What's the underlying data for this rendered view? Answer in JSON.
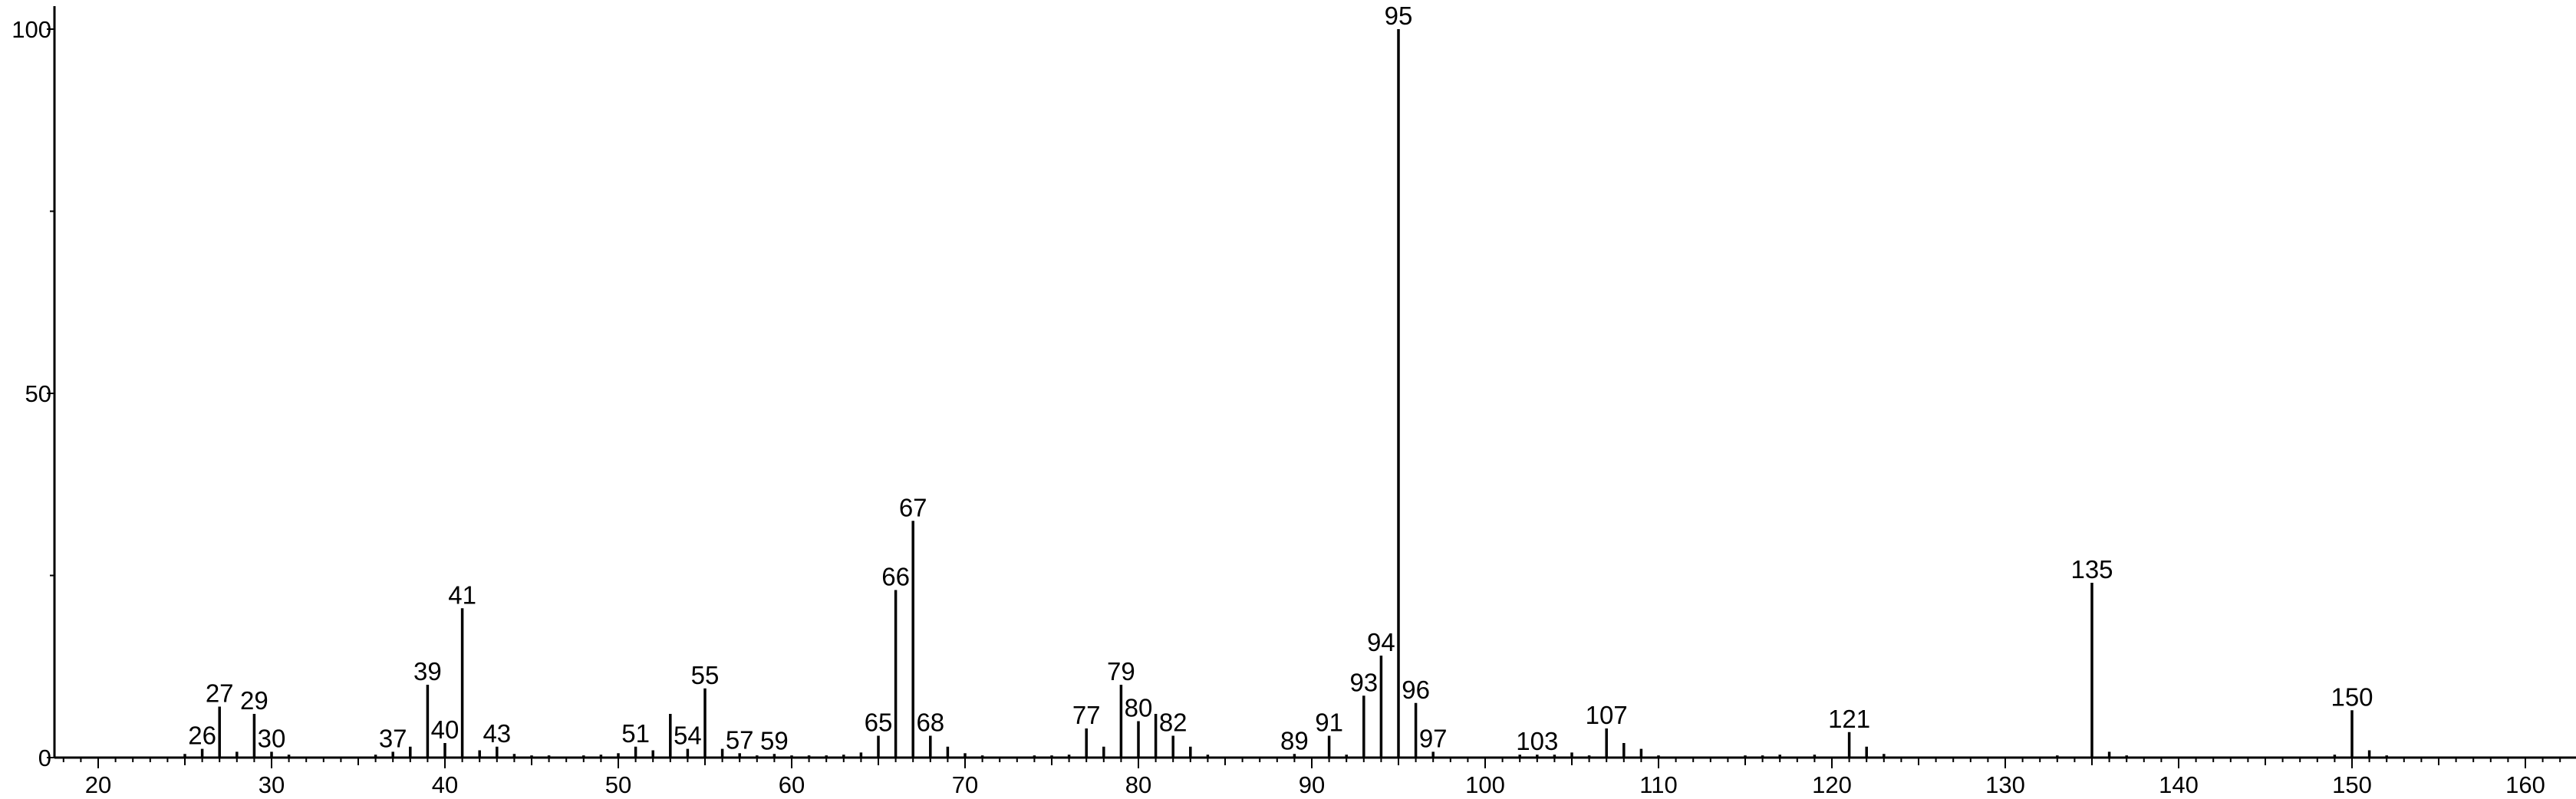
{
  "chart_data": {
    "type": "bar",
    "title": "",
    "xlabel": "",
    "ylabel": "",
    "xlim": [
      18,
      162
    ],
    "ylim": [
      0,
      100
    ],
    "x_ticks": [
      20,
      30,
      40,
      50,
      60,
      70,
      80,
      90,
      100,
      110,
      120,
      130,
      140,
      150,
      160
    ],
    "x_tick_labels": [
      "20",
      "30",
      "40",
      "50",
      "60",
      "70",
      "80",
      "90",
      "100",
      "110",
      "120",
      "130",
      "140",
      "150",
      "160"
    ],
    "y_ticks": [
      0,
      50,
      100
    ],
    "y_tick_labels": [
      "0",
      "50",
      "100"
    ],
    "grid": false,
    "legend": "none",
    "bar_color": "#000000",
    "peaks": [
      {
        "mz": 25,
        "intensity": 0.5
      },
      {
        "mz": 26,
        "intensity": 1.2,
        "label": "26"
      },
      {
        "mz": 27,
        "intensity": 7,
        "label": "27"
      },
      {
        "mz": 28,
        "intensity": 0.8
      },
      {
        "mz": 29,
        "intensity": 6,
        "label": "29"
      },
      {
        "mz": 30,
        "intensity": 0.8,
        "label": "30"
      },
      {
        "mz": 31,
        "intensity": 0.4
      },
      {
        "mz": 36,
        "intensity": 0.4
      },
      {
        "mz": 37,
        "intensity": 0.8,
        "label": "37"
      },
      {
        "mz": 38,
        "intensity": 1.5
      },
      {
        "mz": 39,
        "intensity": 10,
        "label": "39"
      },
      {
        "mz": 40,
        "intensity": 2,
        "label": "40"
      },
      {
        "mz": 41,
        "intensity": 20.5,
        "label": "41"
      },
      {
        "mz": 42,
        "intensity": 1.0
      },
      {
        "mz": 43,
        "intensity": 1.5,
        "label": "43"
      },
      {
        "mz": 44,
        "intensity": 0.5
      },
      {
        "mz": 45,
        "intensity": 0.3
      },
      {
        "mz": 46,
        "intensity": 0.3
      },
      {
        "mz": 48,
        "intensity": 0.3
      },
      {
        "mz": 49,
        "intensity": 0.4
      },
      {
        "mz": 50,
        "intensity": 0.6
      },
      {
        "mz": 51,
        "intensity": 1.5,
        "label": "51"
      },
      {
        "mz": 52,
        "intensity": 1.0
      },
      {
        "mz": 53,
        "intensity": 6,
        "label": ""
      },
      {
        "mz": 54,
        "intensity": 1.2,
        "label": "54"
      },
      {
        "mz": 55,
        "intensity": 9.5,
        "label": "55"
      },
      {
        "mz": 56,
        "intensity": 1.2
      },
      {
        "mz": 57,
        "intensity": 0.6,
        "label": "57"
      },
      {
        "mz": 58,
        "intensity": 0.3
      },
      {
        "mz": 59,
        "intensity": 0.5,
        "label": "59"
      },
      {
        "mz": 60,
        "intensity": 0.3
      },
      {
        "mz": 61,
        "intensity": 0.3
      },
      {
        "mz": 62,
        "intensity": 0.3
      },
      {
        "mz": 63,
        "intensity": 0.4
      },
      {
        "mz": 64,
        "intensity": 0.7
      },
      {
        "mz": 65,
        "intensity": 3,
        "label": "65"
      },
      {
        "mz": 66,
        "intensity": 23,
        "label": "66"
      },
      {
        "mz": 67,
        "intensity": 32.5,
        "label": "67"
      },
      {
        "mz": 68,
        "intensity": 3,
        "label": "68"
      },
      {
        "mz": 69,
        "intensity": 1.5
      },
      {
        "mz": 70,
        "intensity": 0.6
      },
      {
        "mz": 71,
        "intensity": 0.3
      },
      {
        "mz": 74,
        "intensity": 0.3
      },
      {
        "mz": 75,
        "intensity": 0.3
      },
      {
        "mz": 76,
        "intensity": 0.4
      },
      {
        "mz": 77,
        "intensity": 4,
        "label": "77"
      },
      {
        "mz": 78,
        "intensity": 1.5
      },
      {
        "mz": 79,
        "intensity": 10,
        "label": "79"
      },
      {
        "mz": 80,
        "intensity": 5,
        "label": "80"
      },
      {
        "mz": 81,
        "intensity": 6,
        "label": ""
      },
      {
        "mz": 82,
        "intensity": 3,
        "label": "82"
      },
      {
        "mz": 83,
        "intensity": 1.5
      },
      {
        "mz": 84,
        "intensity": 0.4
      },
      {
        "mz": 89,
        "intensity": 0.5,
        "label": "89"
      },
      {
        "mz": 91,
        "intensity": 3,
        "label": "91"
      },
      {
        "mz": 92,
        "intensity": 0.4
      },
      {
        "mz": 93,
        "intensity": 8.5,
        "label": "93"
      },
      {
        "mz": 94,
        "intensity": 14,
        "label": "94"
      },
      {
        "mz": 95,
        "intensity": 100,
        "label": "95"
      },
      {
        "mz": 96,
        "intensity": 7.5,
        "label": "96"
      },
      {
        "mz": 97,
        "intensity": 0.8,
        "label": "97"
      },
      {
        "mz": 102,
        "intensity": 0.4
      },
      {
        "mz": 103,
        "intensity": 0.4,
        "label": "103"
      },
      {
        "mz": 104,
        "intensity": 0.4
      },
      {
        "mz": 105,
        "intensity": 0.7
      },
      {
        "mz": 106,
        "intensity": 0.3
      },
      {
        "mz": 107,
        "intensity": 4,
        "label": "107"
      },
      {
        "mz": 108,
        "intensity": 2
      },
      {
        "mz": 109,
        "intensity": 1.2
      },
      {
        "mz": 110,
        "intensity": 0.3
      },
      {
        "mz": 115,
        "intensity": 0.3
      },
      {
        "mz": 116,
        "intensity": 0.3
      },
      {
        "mz": 117,
        "intensity": 0.4
      },
      {
        "mz": 119,
        "intensity": 0.4
      },
      {
        "mz": 121,
        "intensity": 3.5,
        "label": "121"
      },
      {
        "mz": 122,
        "intensity": 1.5
      },
      {
        "mz": 123,
        "intensity": 0.5
      },
      {
        "mz": 133,
        "intensity": 0.3
      },
      {
        "mz": 135,
        "intensity": 24,
        "label": "135"
      },
      {
        "mz": 136,
        "intensity": 0.8
      },
      {
        "mz": 137,
        "intensity": 0.3
      },
      {
        "mz": 149,
        "intensity": 0.4
      },
      {
        "mz": 150,
        "intensity": 6.5,
        "label": "150"
      },
      {
        "mz": 151,
        "intensity": 1
      },
      {
        "mz": 152,
        "intensity": 0.3
      }
    ]
  }
}
